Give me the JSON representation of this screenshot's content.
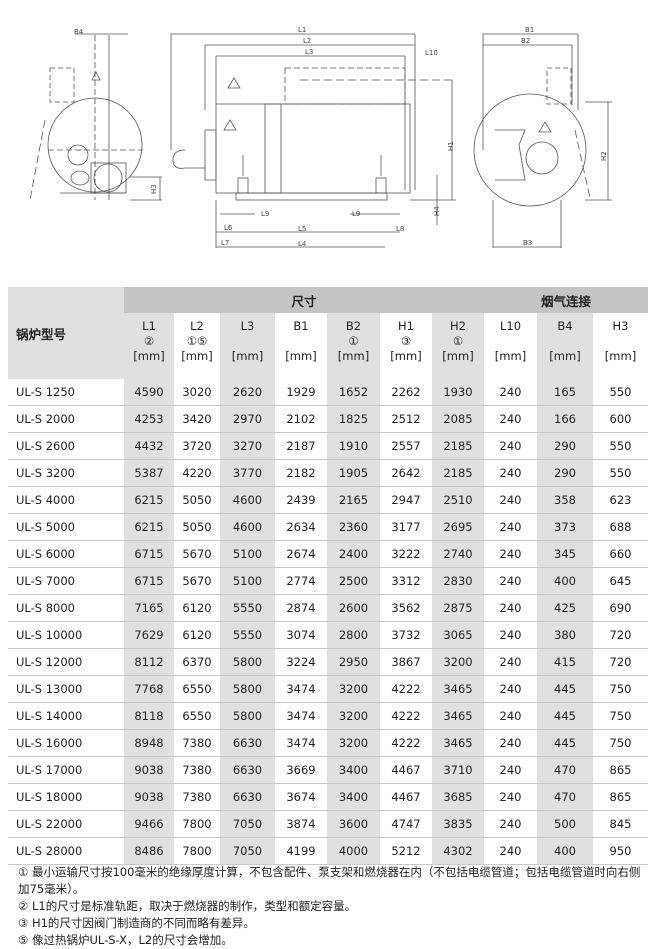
{
  "drawing": {
    "labels": {
      "B4": "B4",
      "L1": "L1",
      "L2": "L2",
      "L3": "L3",
      "L10": "L10",
      "H1": "H1",
      "H3": "H3",
      "H4": "H4",
      "L9": "L9",
      "L6": "L6",
      "L5": "L5",
      "L8": "L8",
      "L7": "L7",
      "L4": "L4",
      "B1": "B1",
      "B2": "B2",
      "B3": "B3",
      "H2": "H2"
    }
  },
  "table": {
    "model_header": "锅炉型号",
    "group_dimensions": "尺寸",
    "group_flue": "烟气连接",
    "columns": [
      {
        "name": "L1",
        "note": "②",
        "unit": "[mm]"
      },
      {
        "name": "L2",
        "note": "①⑤",
        "unit": "[mm]"
      },
      {
        "name": "L3",
        "note": "",
        "unit": "[mm]"
      },
      {
        "name": "B1",
        "note": "",
        "unit": "[mm]"
      },
      {
        "name": "B2",
        "note": "①",
        "unit": "[mm]"
      },
      {
        "name": "H1",
        "note": "③",
        "unit": "[mm]"
      },
      {
        "name": "H2",
        "note": "①",
        "unit": "[mm]"
      },
      {
        "name": "L10",
        "note": "",
        "unit": "[mm]"
      },
      {
        "name": "B4",
        "note": "",
        "unit": "[mm]"
      },
      {
        "name": "H3",
        "note": "",
        "unit": "[mm]"
      }
    ],
    "rows": [
      [
        "UL-S 1250",
        "4590",
        "3020",
        "2620",
        "1929",
        "1652",
        "2262",
        "1930",
        "240",
        "165",
        "550"
      ],
      [
        "UL-S 2000",
        "4253",
        "3420",
        "2970",
        "2102",
        "1825",
        "2512",
        "2085",
        "240",
        "166",
        "600"
      ],
      [
        "UL-S 2600",
        "4432",
        "3720",
        "3270",
        "2187",
        "1910",
        "2557",
        "2185",
        "240",
        "290",
        "550"
      ],
      [
        "UL-S 3200",
        "5387",
        "4220",
        "3770",
        "2182",
        "1905",
        "2642",
        "2185",
        "240",
        "290",
        "550"
      ],
      [
        "UL-S 4000",
        "6215",
        "5050",
        "4600",
        "2439",
        "2165",
        "2947",
        "2510",
        "240",
        "358",
        "623"
      ],
      [
        "UL-S 5000",
        "6215",
        "5050",
        "4600",
        "2634",
        "2360",
        "3177",
        "2695",
        "240",
        "373",
        "688"
      ],
      [
        "UL-S 6000",
        "6715",
        "5670",
        "5100",
        "2674",
        "2400",
        "3222",
        "2740",
        "240",
        "345",
        "660"
      ],
      [
        "UL-S 7000",
        "6715",
        "5670",
        "5100",
        "2774",
        "2500",
        "3312",
        "2830",
        "240",
        "400",
        "645"
      ],
      [
        "UL-S 8000",
        "7165",
        "6120",
        "5550",
        "2874",
        "2600",
        "3562",
        "2875",
        "240",
        "425",
        "690"
      ],
      [
        "UL-S 10000",
        "7629",
        "6120",
        "5550",
        "3074",
        "2800",
        "3732",
        "3065",
        "240",
        "380",
        "720"
      ],
      [
        "UL-S 12000",
        "8112",
        "6370",
        "5800",
        "3224",
        "2950",
        "3867",
        "3200",
        "240",
        "415",
        "720"
      ],
      [
        "UL-S 13000",
        "7768",
        "6550",
        "5800",
        "3474",
        "3200",
        "4222",
        "3465",
        "240",
        "445",
        "750"
      ],
      [
        "UL-S 14000",
        "8118",
        "6550",
        "5800",
        "3474",
        "3200",
        "4222",
        "3465",
        "240",
        "445",
        "750"
      ],
      [
        "UL-S 16000",
        "8948",
        "7380",
        "6630",
        "3474",
        "3200",
        "4222",
        "3465",
        "240",
        "445",
        "750"
      ],
      [
        "UL-S 17000",
        "9038",
        "7380",
        "6630",
        "3669",
        "3400",
        "4467",
        "3710",
        "240",
        "470",
        "865"
      ],
      [
        "UL-S 18000",
        "9038",
        "7380",
        "6630",
        "3674",
        "3400",
        "4467",
        "3685",
        "240",
        "470",
        "865"
      ],
      [
        "UL-S 22000",
        "9466",
        "7800",
        "7050",
        "3874",
        "3600",
        "4747",
        "3835",
        "240",
        "500",
        "845"
      ],
      [
        "UL-S 28000",
        "8486",
        "7800",
        "7050",
        "4199",
        "4000",
        "5212",
        "4302",
        "240",
        "400",
        "950"
      ]
    ]
  },
  "notes": [
    "① 最小运输尺寸按100毫米的绝缘厚度计算，不包含配件、泵支架和燃烧器在内（不包括电缆管道；包括电缆管道时向右侧加75毫米）。",
    "② L1的尺寸是标准轨距，取决于燃烧器的制作，类型和额定容量。",
    "③ H1的尺寸因阀门制造商的不同而略有差异。",
    "⑤ 像过热锅炉UL-S-X，L2的尺寸会增加。"
  ]
}
